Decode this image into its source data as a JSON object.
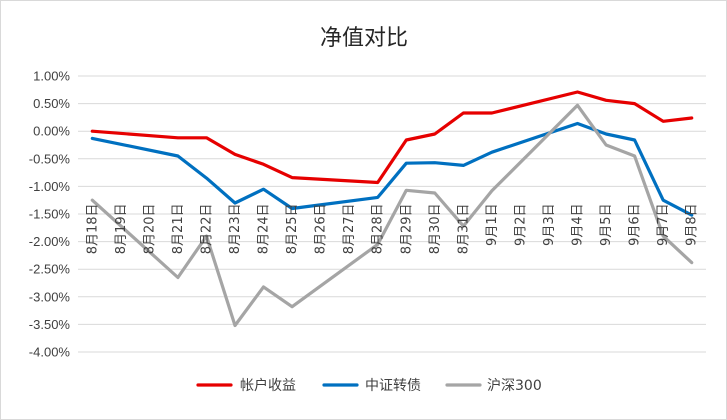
{
  "chart_data": {
    "type": "line",
    "title": "净值对比",
    "xlabel": "",
    "ylabel": "",
    "categories": [
      "8月18日",
      "8月19日",
      "8月20日",
      "8月21日",
      "8月22日",
      "8月23日",
      "8月24日",
      "8月25日",
      "8月26日",
      "8月27日",
      "8月28日",
      "8月29日",
      "8月30日",
      "8月31日",
      "9月1日",
      "9月2日",
      "9月3日",
      "9月4日",
      "9月5日",
      "9月6日",
      "9月7日",
      "9月8日"
    ],
    "ylim": [
      -0.04,
      0.01
    ],
    "yticks": [
      0.01,
      0.005,
      0,
      -0.005,
      -0.01,
      -0.015,
      -0.02,
      -0.025,
      -0.03,
      -0.035,
      -0.04
    ],
    "ytick_labels": [
      "1.00%",
      "0.50%",
      "0.00%",
      "-0.50%",
      "-1.00%",
      "-1.50%",
      "-2.00%",
      "-2.50%",
      "-3.00%",
      "-3.50%",
      "-4.00%"
    ],
    "grid": true,
    "legend_position": "bottom",
    "series": [
      {
        "name": "帐户收益",
        "color": "#e60000",
        "values": [
          0.0,
          null,
          null,
          -0.0012,
          -0.0012,
          -0.0042,
          -0.006,
          -0.0084,
          null,
          null,
          -0.0093,
          -0.0016,
          -0.0005,
          0.0033,
          0.0033,
          null,
          null,
          0.0071,
          0.0056,
          0.005,
          0.0018,
          0.0024
        ]
      },
      {
        "name": "中证转债",
        "color": "#0070c0",
        "values": [
          -0.0013,
          null,
          null,
          -0.0045,
          -0.0085,
          -0.013,
          -0.0105,
          -0.014,
          null,
          null,
          -0.012,
          -0.0058,
          -0.0057,
          -0.0062,
          -0.0038,
          null,
          null,
          0.0014,
          -0.0005,
          -0.0016,
          -0.0125,
          -0.0152
        ]
      },
      {
        "name": "沪深300",
        "color": "#a5a5a5",
        "values": [
          -0.0125,
          null,
          null,
          -0.0265,
          -0.019,
          -0.0352,
          -0.0282,
          -0.0318,
          null,
          null,
          -0.0205,
          -0.0107,
          -0.0112,
          -0.0172,
          -0.0108,
          null,
          null,
          0.0047,
          -0.0025,
          -0.0045,
          -0.019,
          -0.0238
        ]
      }
    ]
  }
}
